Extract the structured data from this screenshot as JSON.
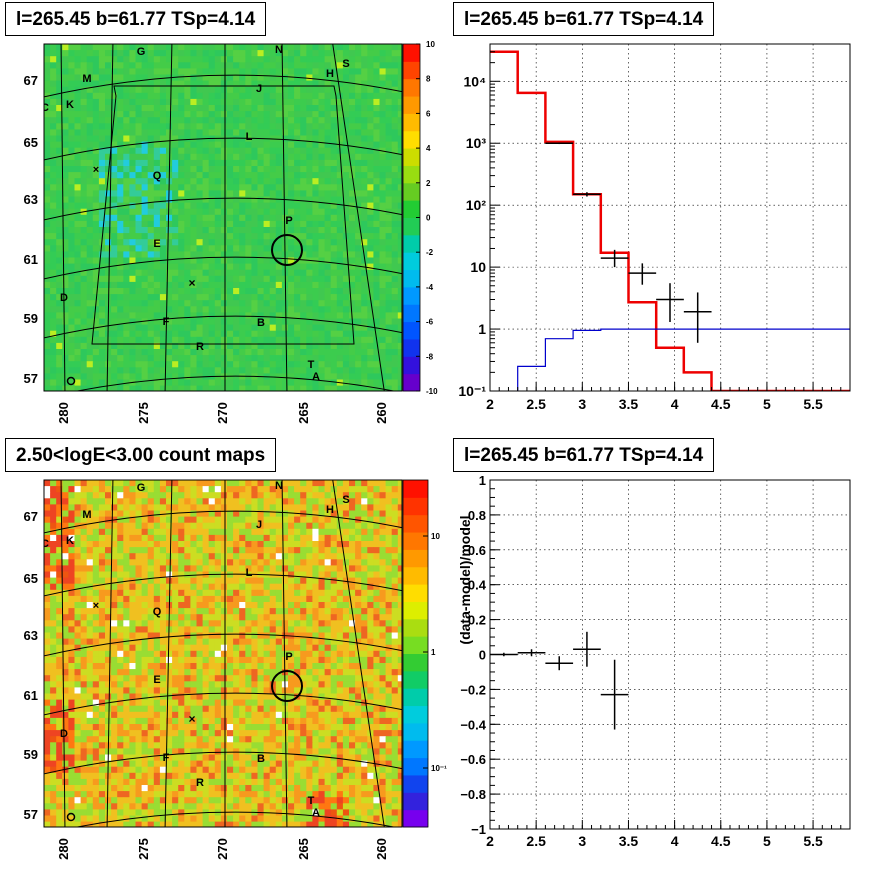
{
  "panels": {
    "tl_title": "l=265.45 b=61.77 TSp=4.14",
    "tr_title": "l=265.45 b=61.77 TSp=4.14",
    "bl_title": "2.50<logE<3.00 count maps",
    "br_title": "l=265.45 b=61.77 TSp=4.14"
  },
  "maps": {
    "lon_ticks": [
      "280",
      "275",
      "270",
      "265",
      "260"
    ],
    "lat_ticks": [
      "67",
      "65",
      "63",
      "61",
      "59",
      "57"
    ],
    "sources": [
      "G",
      "N",
      "S",
      "H",
      "M",
      "J",
      "C",
      "K",
      "L",
      "Q",
      "P",
      "E",
      "D",
      "F",
      "B",
      "R",
      "T",
      "A",
      "O"
    ],
    "residual_colorbar": {
      "ticks": [
        "10",
        "8",
        "6",
        "4",
        "2",
        "0",
        "-2",
        "-4",
        "-6",
        "-8",
        "-10"
      ],
      "range": [
        -10,
        10
      ]
    },
    "count_colorbar": {
      "ticks": [
        "10",
        "1",
        "10⁻¹"
      ],
      "scale": "log"
    },
    "colors": {
      "residual_base": "#33cc55",
      "count_base": "#f0c020"
    }
  },
  "chart_data": [
    {
      "type": "step",
      "title": "l=265.45 b=61.77 TSp=4.14",
      "xlabel": "",
      "ylabel": "",
      "xlim": [
        2.0,
        5.9
      ],
      "ylim": [
        0.1,
        40000
      ],
      "yscale": "log",
      "x_ticks": [
        "2",
        "2.5",
        "3",
        "3.5",
        "4",
        "4.5",
        "5",
        "5.5"
      ],
      "y_ticks": [
        "10⁻¹",
        "1",
        "10",
        "10²",
        "10³",
        "10⁴"
      ],
      "grid": true,
      "data_points": {
        "x": [
          2.75,
          3.05,
          3.35,
          3.65,
          3.95,
          4.25
        ],
        "xerr": [
          0.15,
          0.15,
          0.15,
          0.15,
          0.15,
          0.15
        ],
        "y": [
          1000,
          150,
          14,
          8,
          3,
          1.9
        ],
        "yerr_low": [
          30,
          12,
          4,
          2.8,
          1.7,
          1.3
        ],
        "yerr_high": [
          30,
          12,
          5,
          3.5,
          2.5,
          2.0
        ],
        "color": "#000000"
      },
      "series": [
        {
          "name": "",
          "color": "#ee0000",
          "edges": [
            2.0,
            2.3,
            2.6,
            2.9,
            3.2,
            3.5,
            3.8,
            4.1,
            4.4,
            5.9
          ],
          "values": [
            30000,
            6500,
            1050,
            150,
            17,
            2.7,
            0.5,
            0.2,
            0.1
          ]
        },
        {
          "name": "",
          "color": "#0000cc",
          "edges": [
            2.3,
            2.6,
            2.9,
            3.2,
            5.9
          ],
          "values": [
            0.25,
            0.7,
            0.95,
            1.0
          ]
        }
      ]
    },
    {
      "type": "scatter",
      "title": "l=265.45 b=61.77 TSp=4.14",
      "xlabel": "",
      "ylabel": "(data-model)/model",
      "xlim": [
        2.0,
        5.9
      ],
      "ylim": [
        -1.0,
        1.0
      ],
      "x_ticks": [
        "2",
        "2.5",
        "3",
        "3.5",
        "4",
        "4.5",
        "5",
        "5.5"
      ],
      "y_ticks": [
        "1",
        "0.8",
        "0.6",
        "0.4",
        "0.2",
        "0",
        "−0.2",
        "−0.4",
        "−0.6",
        "−0.8",
        "−1"
      ],
      "grid": true,
      "x": [
        2.15,
        2.45,
        2.75,
        3.05,
        3.35
      ],
      "xerr": [
        0.15,
        0.15,
        0.15,
        0.15,
        0.15
      ],
      "y": [
        0.0,
        0.01,
        -0.05,
        0.03,
        -0.23
      ],
      "yerr": [
        0.01,
        0.02,
        0.04,
        0.1,
        0.2
      ]
    }
  ]
}
